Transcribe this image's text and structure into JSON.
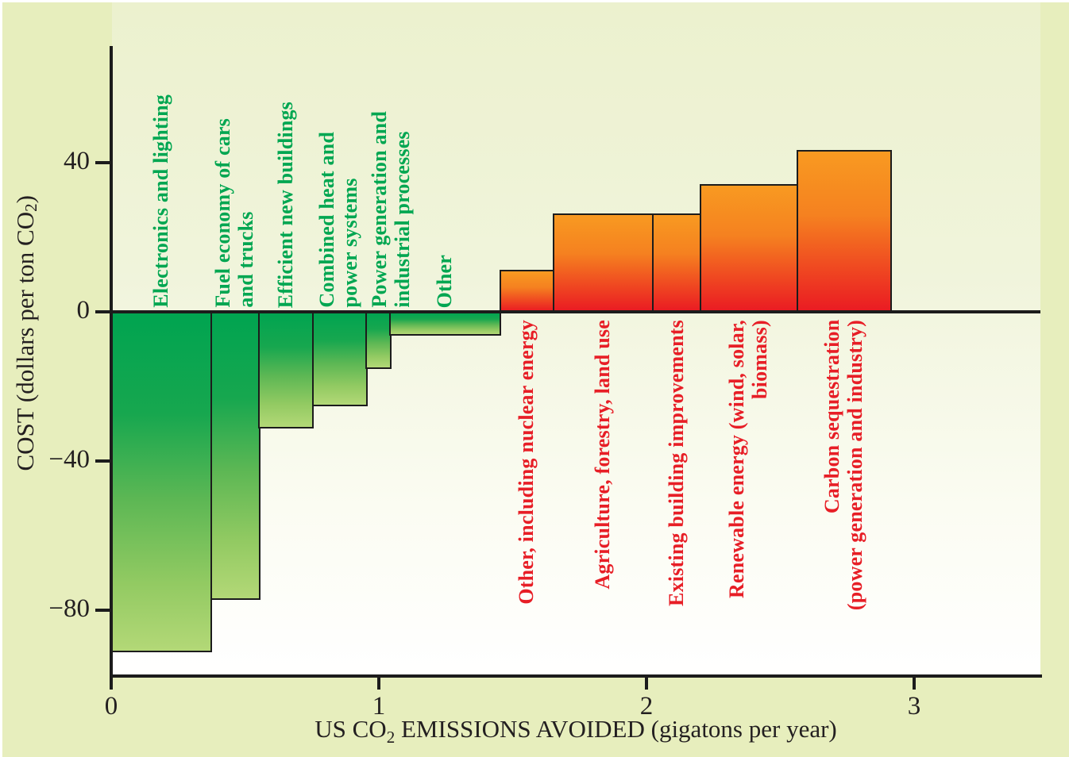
{
  "figure": {
    "kind": "marginal abatement cost curve",
    "colors": {
      "margin_bg": "#e7eebd",
      "plot_bg_top": "#ecf1ce",
      "plot_bg_bottom": "#ffffff",
      "axis": "#1c1c1c",
      "green_label": "#00a651",
      "red_label": "#e71e26",
      "green_bar_top": "#00a450",
      "green_bar_bottom": "#b3d877",
      "red_bar_top": "#f89a21",
      "red_bar_bottom": "#ea1b23"
    },
    "y_axis": {
      "title_parts": [
        {
          "t": "COST (dollars per ton CO"
        },
        {
          "t": "2",
          "sub": true
        },
        {
          "t": ")"
        }
      ],
      "ticks": [
        {
          "label": "40",
          "value": 40
        },
        {
          "label": "0",
          "value": 0
        },
        {
          "label": "−40",
          "value": -40
        },
        {
          "label": "−80",
          "value": -80
        }
      ]
    },
    "x_axis": {
      "title_parts": [
        {
          "t": "US CO"
        },
        {
          "t": "2",
          "sub": true
        },
        {
          "t": " EMISSIONS AVOIDED (gigatons per year)"
        }
      ],
      "ticks": [
        {
          "label": "0",
          "value": 0
        },
        {
          "label": "1",
          "value": 1
        },
        {
          "label": "2",
          "value": 2
        },
        {
          "label": "3",
          "value": 3
        }
      ]
    }
  },
  "chart_data": {
    "type": "bar",
    "title": "",
    "xlabel": "US CO2 EMISSIONS AVOIDED (gigatons per year)",
    "ylabel": "COST (dollars per ton CO2)",
    "xlim": [
      0,
      3.47
    ],
    "ylim": [
      -98,
      84
    ],
    "grid": false,
    "legend": "none",
    "categories": [
      "Electronics and lighting",
      "Fuel economy of cars and trucks",
      "Efficient new buildings",
      "Combined heat and power systems",
      "Power generation and industrial processes",
      "Other",
      "Other, including nuclear energy",
      "Agriculture, forestry, land use",
      "Existing building improvements",
      "Renewable energy (wind, solar, biomass)",
      "Carbon sequestration (power generation and industry)"
    ],
    "values": [
      -91,
      -77,
      -31,
      -25,
      -15,
      -6,
      11,
      26,
      26,
      34,
      43
    ],
    "bars": [
      {
        "label": "Electronics and lighting",
        "label_lines": [
          "Electronics and lighting"
        ],
        "x_start": 0.0,
        "x_end": 0.37,
        "cost": -91,
        "label_dx": 0
      },
      {
        "label": "Fuel economy of cars and trucks",
        "label_lines": [
          "Fuel economy of cars",
          "and trucks"
        ],
        "x_start": 0.37,
        "x_end": 0.55,
        "cost": -77,
        "label_dx": 0
      },
      {
        "label": "Efficient new buildings",
        "label_lines": [
          "Efficient new buildings"
        ],
        "x_start": 0.55,
        "x_end": 0.75,
        "cost": -31,
        "label_dx": 0
      },
      {
        "label": "Combined heat and power systems",
        "label_lines": [
          "Combined heat and",
          "power systems"
        ],
        "x_start": 0.75,
        "x_end": 0.95,
        "cost": -25,
        "label_dx": 0
      },
      {
        "label": "Power generation and industrial processes",
        "label_lines": [
          "Power generation and",
          "industrial processes"
        ],
        "x_start": 0.95,
        "x_end": 1.04,
        "cost": -15,
        "label_dx": 17
      },
      {
        "label": "Other",
        "label_lines": [
          "Other"
        ],
        "x_start": 1.04,
        "x_end": 1.45,
        "cost": -6,
        "label_dx": 0
      },
      {
        "label": "Other, including nuclear energy",
        "label_lines": [
          "Other, including nuclear energy"
        ],
        "x_start": 1.45,
        "x_end": 1.65,
        "cost": 11,
        "label_dx": 0
      },
      {
        "label": "Agriculture, forestry, land use",
        "label_lines": [
          "Agriculture, forestry, land use"
        ],
        "x_start": 1.65,
        "x_end": 2.02,
        "cost": 26,
        "label_dx": 0
      },
      {
        "label": "Existing building improvements",
        "label_lines": [
          "Existing building improvements"
        ],
        "x_start": 2.02,
        "x_end": 2.2,
        "cost": 26,
        "label_dx": 0
      },
      {
        "label": "Renewable energy (wind, solar, biomass)",
        "label_lines": [
          "Renewable energy (wind, solar,",
          "biomass)"
        ],
        "x_start": 2.2,
        "x_end": 2.56,
        "cost": 34,
        "label_dx": 0
      },
      {
        "label": "Carbon sequestration (power generation and industry)",
        "label_lines": [
          "Carbon sequestration",
          "(power generation and industry)"
        ],
        "x_start": 2.56,
        "x_end": 2.91,
        "cost": 43,
        "label_dx": 0
      }
    ],
    "units": {
      "x": "gigatons of CO2 per year",
      "y": "dollars per ton CO2"
    }
  }
}
